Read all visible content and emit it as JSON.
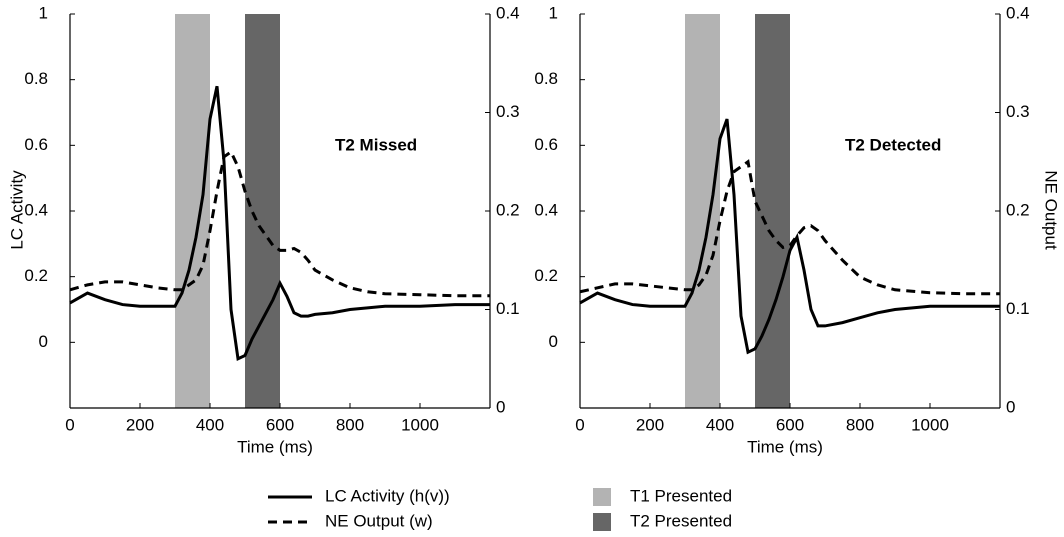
{
  "chart_data": [
    {
      "type": "line",
      "ylabel": "LC Activity",
      "xlabel": "Time (ms)",
      "annotation": "T2 Missed",
      "xlim": [
        0,
        1200
      ],
      "xticks": [
        0,
        200,
        400,
        600,
        800,
        1000
      ],
      "ylim": [
        -0.2,
        1
      ],
      "yticks": [
        0,
        0.2,
        0.4,
        0.6,
        0.8,
        1
      ],
      "y2lim": [
        0,
        0.4
      ],
      "y2ticks": [
        0,
        0.1,
        0.2,
        0.3,
        0.4
      ],
      "shaded_regions": [
        {
          "name": "T1 Presented",
          "color": "#b3b3b3",
          "start": 300,
          "end": 400
        },
        {
          "name": "T2 Presented",
          "color": "#666666",
          "start": 500,
          "end": 600
        }
      ],
      "x": [
        0,
        50,
        100,
        150,
        200,
        250,
        300,
        320,
        340,
        360,
        380,
        400,
        420,
        440,
        460,
        480,
        500,
        520,
        540,
        560,
        580,
        600,
        620,
        640,
        660,
        680,
        700,
        750,
        800,
        850,
        900,
        1000,
        1100,
        1200
      ],
      "series": [
        {
          "name": "LC Activity (h(v))",
          "color": "#000000",
          "dash": "solid",
          "values": [
            0.12,
            0.15,
            0.13,
            0.115,
            0.11,
            0.11,
            0.11,
            0.15,
            0.22,
            0.32,
            0.45,
            0.68,
            0.78,
            0.55,
            0.1,
            -0.05,
            -0.04,
            0.01,
            0.05,
            0.09,
            0.13,
            0.18,
            0.14,
            0.09,
            0.08,
            0.08,
            0.085,
            0.09,
            0.1,
            0.105,
            0.11,
            0.11,
            0.115,
            0.115
          ]
        },
        {
          "name": "NE Output (w)",
          "color": "#000000",
          "dash": "dashed",
          "axis": "y2",
          "values": [
            0.12,
            0.125,
            0.128,
            0.128,
            0.125,
            0.122,
            0.12,
            0.12,
            0.125,
            0.13,
            0.145,
            0.18,
            0.22,
            0.255,
            0.26,
            0.245,
            0.22,
            0.2,
            0.185,
            0.175,
            0.165,
            0.16,
            0.16,
            0.162,
            0.158,
            0.15,
            0.14,
            0.13,
            0.122,
            0.118,
            0.116,
            0.115,
            0.114,
            0.114
          ]
        }
      ]
    },
    {
      "type": "line",
      "y2label": "NE Output",
      "xlabel": "Time (ms)",
      "annotation": "T2 Detected",
      "xlim": [
        0,
        1200
      ],
      "xticks": [
        0,
        200,
        400,
        600,
        800,
        1000
      ],
      "ylim": [
        -0.2,
        1
      ],
      "yticks": [
        0,
        0.2,
        0.4,
        0.6,
        0.8,
        1
      ],
      "y2lim": [
        0,
        0.4
      ],
      "y2ticks": [
        0,
        0.1,
        0.2,
        0.3,
        0.4
      ],
      "shaded_regions": [
        {
          "color": "#b3b3b3",
          "start": 300,
          "end": 400
        },
        {
          "color": "#666666",
          "start": 500,
          "end": 600
        }
      ],
      "x": [
        0,
        50,
        100,
        150,
        200,
        250,
        300,
        320,
        340,
        360,
        380,
        400,
        420,
        440,
        460,
        480,
        500,
        520,
        540,
        560,
        580,
        600,
        620,
        640,
        660,
        680,
        700,
        750,
        800,
        850,
        900,
        1000,
        1100,
        1200
      ],
      "series": [
        {
          "color": "#000000",
          "dash": "solid",
          "values": [
            0.12,
            0.15,
            0.13,
            0.115,
            0.11,
            0.11,
            0.11,
            0.15,
            0.22,
            0.32,
            0.45,
            0.62,
            0.68,
            0.45,
            0.08,
            -0.03,
            -0.02,
            0.02,
            0.07,
            0.13,
            0.2,
            0.28,
            0.32,
            0.22,
            0.1,
            0.05,
            0.05,
            0.06,
            0.075,
            0.09,
            0.1,
            0.11,
            0.11,
            0.11
          ]
        },
        {
          "color": "#000000",
          "dash": "dashed",
          "axis": "y2",
          "values": [
            0.118,
            0.122,
            0.126,
            0.126,
            0.124,
            0.122,
            0.12,
            0.12,
            0.125,
            0.135,
            0.155,
            0.19,
            0.22,
            0.24,
            0.245,
            0.25,
            0.21,
            0.195,
            0.18,
            0.17,
            0.163,
            0.165,
            0.175,
            0.183,
            0.185,
            0.18,
            0.17,
            0.15,
            0.133,
            0.125,
            0.12,
            0.117,
            0.116,
            0.116
          ]
        }
      ]
    }
  ]
}
